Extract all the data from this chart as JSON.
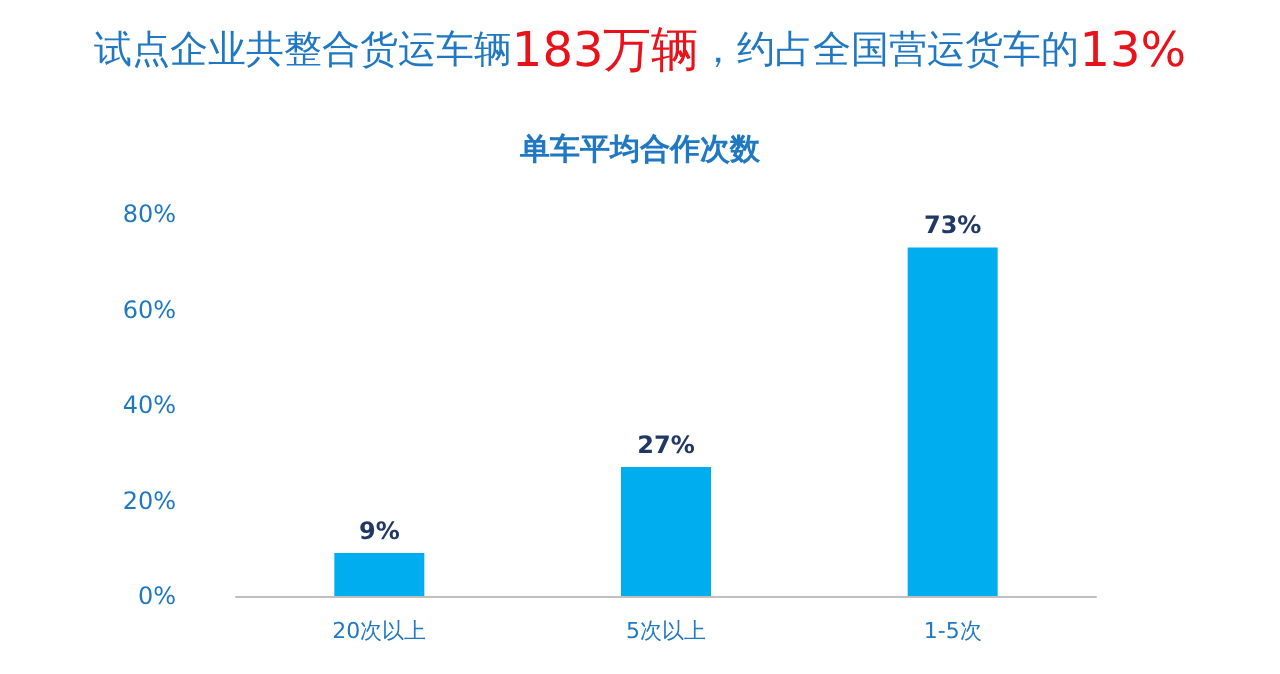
{
  "chart_data": {
    "type": "bar",
    "title": "试点企业共整合货运车辆183万辆，约占全国营运货车的13%",
    "subtitle": "单车平均合作次数",
    "categories": [
      "20次以上",
      "5次以上",
      "1-5次"
    ],
    "values": [
      9,
      27,
      73
    ],
    "value_labels": [
      "9%",
      "27%",
      "73%"
    ],
    "color": "#00aeef",
    "ylim": [
      0,
      80
    ],
    "yticks": [
      {
        "value": 0,
        "label": "0%"
      },
      {
        "value": 20,
        "label": "20%"
      },
      {
        "value": 40,
        "label": "40%"
      },
      {
        "value": 60,
        "label": "60%"
      },
      {
        "value": 80,
        "label": "80%"
      }
    ],
    "grid": false
  }
}
